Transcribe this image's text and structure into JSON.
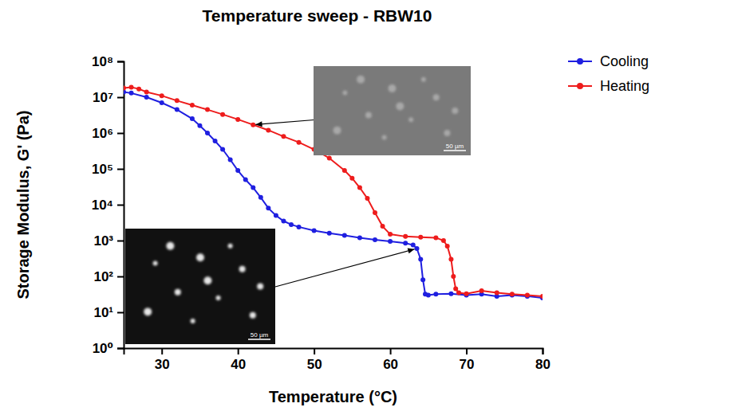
{
  "chart_data": {
    "type": "line",
    "title": "Temperature sweep - RBW10",
    "x_label": "Temperature (°C)",
    "y_label": "Storage Modulus, G' (Pa)",
    "log": "y",
    "grid": false,
    "legend": "right",
    "xlim": [
      25,
      80
    ],
    "xticks": [
      30,
      40,
      50,
      60,
      70,
      80
    ],
    "ylim": [
      1,
      100000000
    ],
    "yticks": [
      {
        "value": 1,
        "label": "10⁰"
      },
      {
        "value": 10,
        "label": "10¹"
      },
      {
        "value": 100,
        "label": "10²"
      },
      {
        "value": 1000,
        "label": "10³"
      },
      {
        "value": 10000,
        "label": "10⁴"
      },
      {
        "value": 100000,
        "label": "10⁵"
      },
      {
        "value": 1000000,
        "label": "10⁶"
      },
      {
        "value": 10000000,
        "label": "10⁷"
      },
      {
        "value": 100000000,
        "label": "10⁸"
      }
    ],
    "series": [
      {
        "name": "Cooling",
        "color": "#1f1fe0",
        "marker": "circle",
        "line_style": "solid",
        "x": [
          80,
          78,
          76,
          74,
          72,
          70,
          68,
          66,
          65,
          64.6,
          64.3,
          64,
          63.5,
          63,
          62,
          60,
          58,
          56,
          54,
          52,
          50,
          48,
          47,
          46,
          45,
          44,
          43,
          42,
          41,
          40,
          39,
          38,
          37,
          36,
          35,
          34,
          32,
          30,
          28,
          26,
          25
        ],
        "values": [
          25,
          28,
          30,
          28,
          32,
          30,
          33,
          32,
          30,
          32,
          80,
          300,
          600,
          750,
          850,
          950,
          1050,
          1200,
          1400,
          1600,
          1900,
          2400,
          2800,
          3500,
          5000,
          8000,
          16000,
          30000,
          50000,
          90000,
          180000,
          350000,
          600000,
          1000000,
          1600000,
          2500000,
          4500000,
          7000000,
          10000000,
          13000000,
          14000000
        ]
      },
      {
        "name": "Heating",
        "color": "#ee1c1c",
        "marker": "circle",
        "line_style": "solid",
        "x": [
          25,
          26,
          27,
          28,
          30,
          32,
          34,
          36,
          38,
          40,
          42,
          44,
          46,
          48,
          50,
          52,
          54,
          55,
          56,
          57,
          58,
          59,
          60,
          62,
          64,
          66,
          67,
          67.5,
          68,
          68.3,
          68.6,
          69,
          70,
          72,
          74,
          76,
          78,
          80
        ],
        "values": [
          18000000,
          19000000,
          17000000,
          14000000,
          11000000,
          8000000,
          6000000,
          4500000,
          3300000,
          2400000,
          1700000,
          1200000,
          800000,
          550000,
          350000,
          200000,
          90000,
          55000,
          30000,
          15000,
          6000,
          2500,
          1500,
          1300,
          1250,
          1200,
          1000,
          700,
          300,
          100,
          45,
          35,
          33,
          40,
          35,
          32,
          30,
          28
        ]
      }
    ],
    "annotations": [
      {
        "text": "50 µm",
        "series": "Heating",
        "x": 42
      },
      {
        "text": "50 µm",
        "series": "Cooling",
        "x": 63.5
      }
    ]
  }
}
